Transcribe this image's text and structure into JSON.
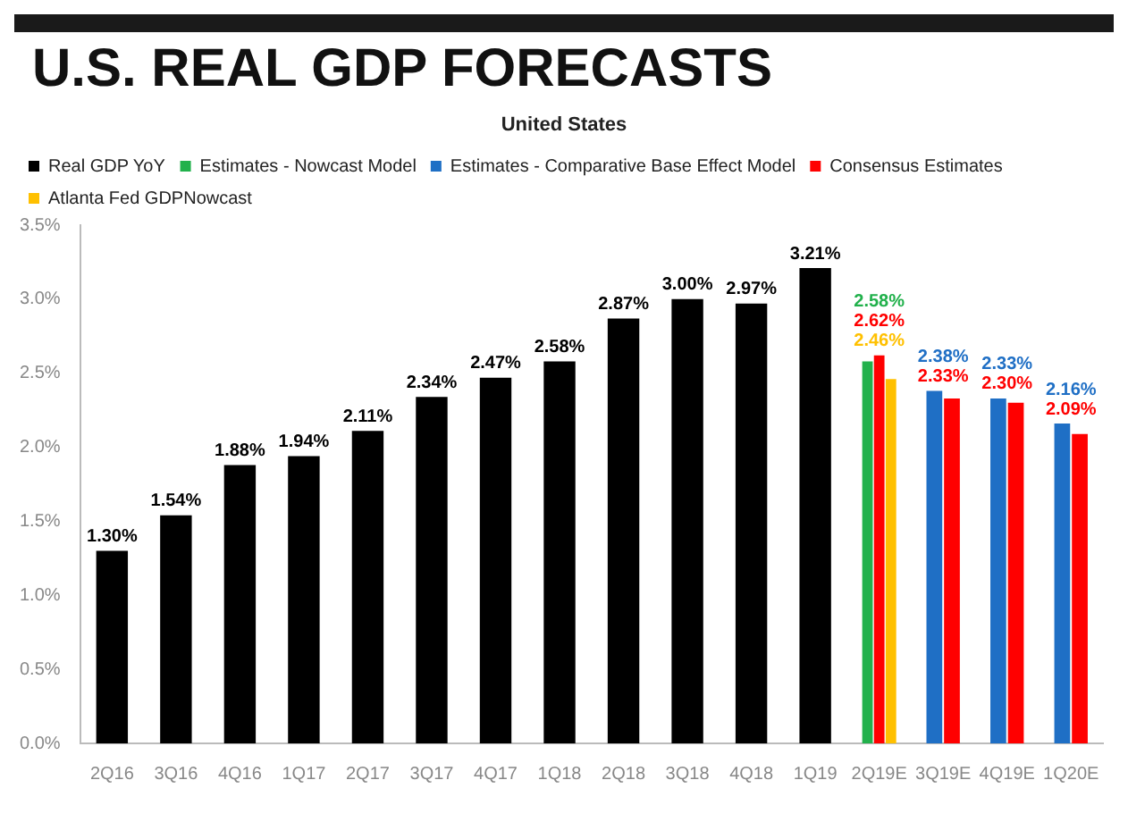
{
  "chart_data": {
    "type": "bar",
    "title": "U.S. REAL GDP FORECASTS",
    "subtitle": "United States",
    "categories": [
      "2Q16",
      "3Q16",
      "4Q16",
      "1Q17",
      "2Q17",
      "3Q17",
      "4Q17",
      "1Q18",
      "2Q18",
      "3Q18",
      "4Q18",
      "1Q19",
      "2Q19E",
      "3Q19E",
      "4Q19E",
      "1Q20E"
    ],
    "series": [
      {
        "name": "Real GDP YoY",
        "color": "#000000",
        "values": [
          1.3,
          1.54,
          1.88,
          1.94,
          2.11,
          2.34,
          2.47,
          2.58,
          2.87,
          3.0,
          2.97,
          3.21,
          null,
          null,
          null,
          null
        ],
        "value_labels": [
          "1.30%",
          "1.54%",
          "1.88%",
          "1.94%",
          "2.11%",
          "2.34%",
          "2.47%",
          "2.58%",
          "2.87%",
          "3.00%",
          "2.97%",
          "3.21%",
          null,
          null,
          null,
          null
        ]
      },
      {
        "name": "Estimates - Nowcast Model",
        "color": "#22b14c",
        "values": [
          null,
          null,
          null,
          null,
          null,
          null,
          null,
          null,
          null,
          null,
          null,
          null,
          2.58,
          null,
          null,
          null
        ],
        "value_labels": [
          null,
          null,
          null,
          null,
          null,
          null,
          null,
          null,
          null,
          null,
          null,
          null,
          "2.58%",
          null,
          null,
          null
        ]
      },
      {
        "name": "Estimates - Comparative Base Effect Model",
        "color": "#1f6fc5",
        "values": [
          null,
          null,
          null,
          null,
          null,
          null,
          null,
          null,
          null,
          null,
          null,
          null,
          null,
          2.38,
          2.33,
          2.16
        ],
        "value_labels": [
          null,
          null,
          null,
          null,
          null,
          null,
          null,
          null,
          null,
          null,
          null,
          null,
          null,
          "2.38%",
          "2.33%",
          "2.16%"
        ]
      },
      {
        "name": "Consensus Estimates",
        "color": "#ff0000",
        "values": [
          null,
          null,
          null,
          null,
          null,
          null,
          null,
          null,
          null,
          null,
          null,
          null,
          2.62,
          2.33,
          2.3,
          2.09
        ],
        "value_labels": [
          null,
          null,
          null,
          null,
          null,
          null,
          null,
          null,
          null,
          null,
          null,
          null,
          "2.62%",
          "2.33%",
          "2.30%",
          "2.09%"
        ]
      },
      {
        "name": "Atlanta Fed GDPNowcast",
        "color": "#ffc000",
        "values": [
          null,
          null,
          null,
          null,
          null,
          null,
          null,
          null,
          null,
          null,
          null,
          null,
          2.46,
          null,
          null,
          null
        ],
        "value_labels": [
          null,
          null,
          null,
          null,
          null,
          null,
          null,
          null,
          null,
          null,
          null,
          null,
          "2.46%",
          null,
          null,
          null
        ]
      }
    ],
    "ylim": [
      0,
      3.5
    ],
    "yticks": [
      {
        "value": 0,
        "label": "0.0%"
      },
      {
        "value": 0.5,
        "label": "0.5%"
      },
      {
        "value": 1,
        "label": "1.0%"
      },
      {
        "value": 1.5,
        "label": "1.5%"
      },
      {
        "value": 2,
        "label": "2.0%"
      },
      {
        "value": 2.5,
        "label": "2.5%"
      },
      {
        "value": 3,
        "label": "3.0%"
      },
      {
        "value": 3.5,
        "label": "3.5%"
      }
    ],
    "grid": false,
    "legend": "top"
  }
}
